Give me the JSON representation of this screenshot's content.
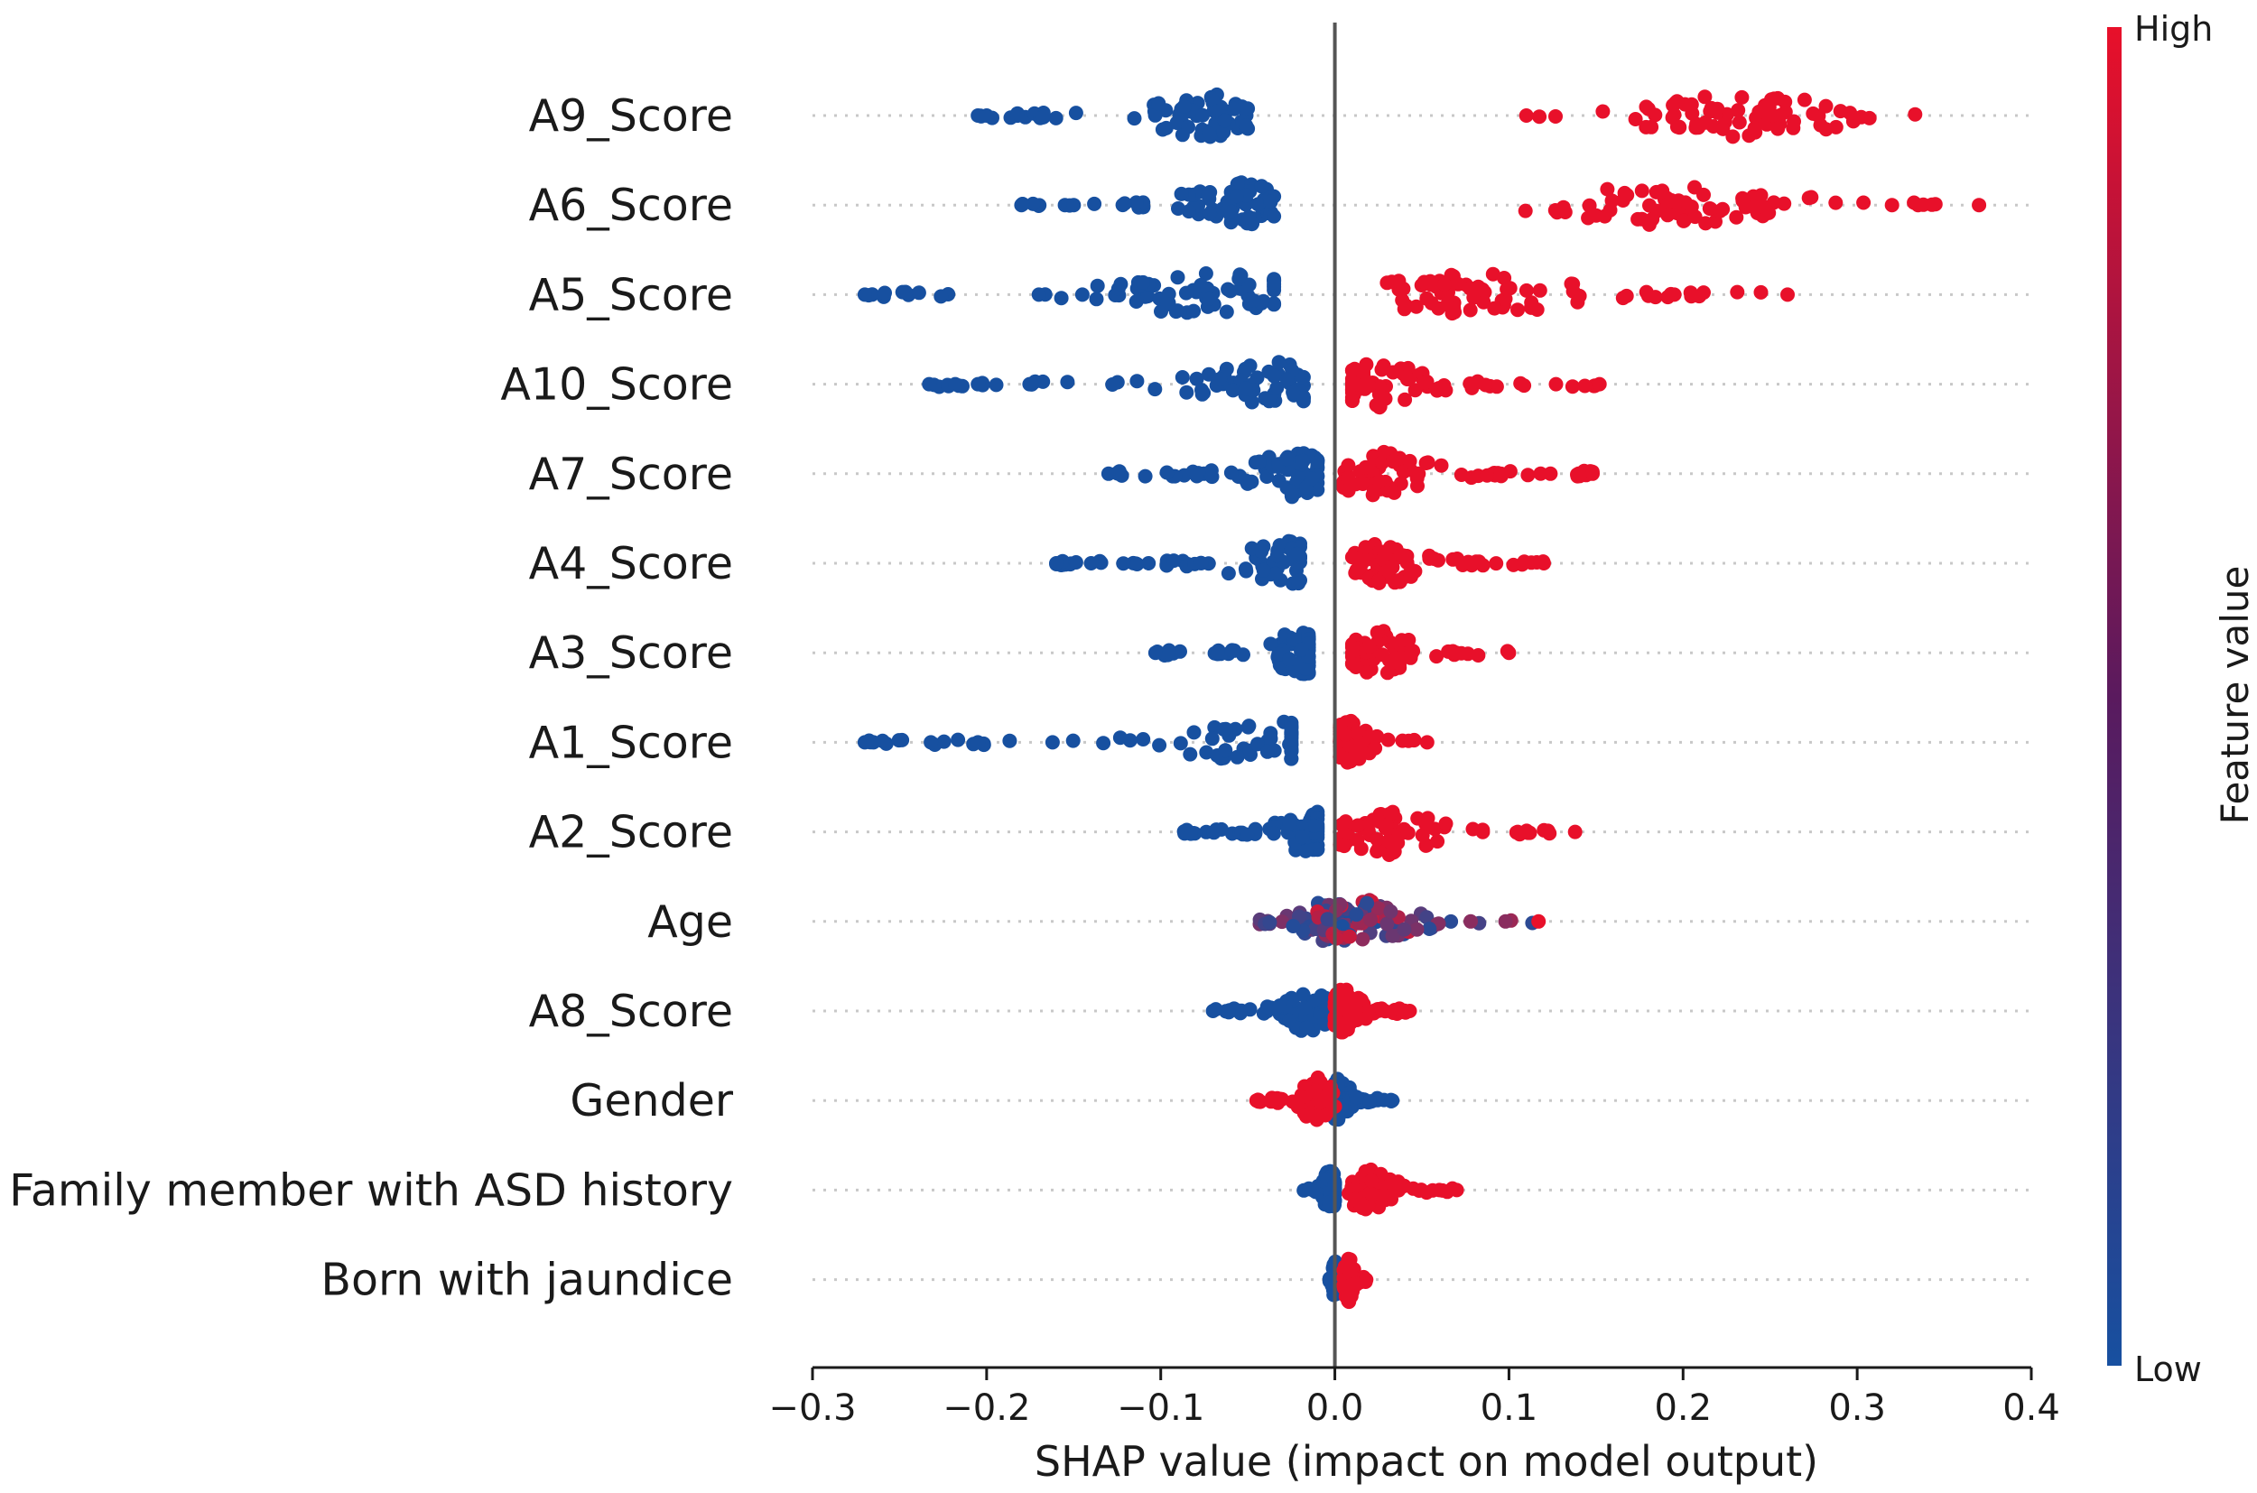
{
  "chart_data": {
    "type": "scatter",
    "subtype": "shap-beeswarm",
    "title": "",
    "xlabel": "SHAP value (impact on model output)",
    "ylabel": "",
    "xlim": [
      -0.3,
      0.4
    ],
    "xticks": [
      -0.3,
      -0.2,
      -0.1,
      0.0,
      0.1,
      0.2,
      0.3,
      0.4
    ],
    "xtick_labels": [
      "−0.3",
      "−0.2",
      "−0.1",
      "0.0",
      "0.1",
      "0.2",
      "0.3",
      "0.4"
    ],
    "grid": "horizontal dotted lines per feature",
    "colorbar": {
      "title": "Feature value",
      "high_label": "High",
      "low_label": "Low",
      "high_color": "#e8102a",
      "mid_color": "#5a1a5e",
      "low_color": "#1750a0",
      "placement": "right"
    },
    "features": [
      {
        "name": "A9_Score",
        "low_range": [
          -0.205,
          -0.05
        ],
        "high_range": [
          0.11,
          0.36
        ],
        "low_peak": -0.075,
        "high_peak": 0.235,
        "low_outliers": [
          -0.205,
          -0.2
        ],
        "high_outliers": [
          0.11
        ]
      },
      {
        "name": "A6_Score",
        "low_range": [
          -0.18,
          -0.035
        ],
        "high_range": [
          0.105,
          0.37
        ],
        "low_peak": -0.055,
        "high_peak": 0.195,
        "low_outliers": [
          -0.18,
          -0.155,
          -0.15
        ],
        "high_outliers": [
          0.32,
          0.335,
          0.37
        ]
      },
      {
        "name": "A5_Score",
        "low_range": [
          -0.27,
          -0.035
        ],
        "high_range": [
          0.03,
          0.26
        ],
        "low_peak": -0.07,
        "high_peak": 0.08,
        "low_outliers": [
          -0.27,
          -0.17,
          -0.145
        ],
        "high_outliers": [
          0.195,
          0.26
        ]
      },
      {
        "name": "A10_Score",
        "low_range": [
          -0.233,
          -0.018
        ],
        "high_range": [
          0.01,
          0.152
        ],
        "low_peak": -0.035,
        "high_peak": 0.025,
        "low_outliers": [
          -0.233,
          -0.218,
          -0.205
        ],
        "high_outliers": [
          0.127,
          0.152
        ]
      },
      {
        "name": "A7_Score",
        "low_range": [
          -0.13,
          -0.01
        ],
        "high_range": [
          0.005,
          0.148
        ],
        "low_peak": -0.025,
        "high_peak": 0.025,
        "low_outliers": [
          -0.13
        ],
        "high_outliers": [
          0.14,
          0.148
        ]
      },
      {
        "name": "A4_Score",
        "low_range": [
          -0.16,
          -0.02
        ],
        "high_range": [
          0.01,
          0.12
        ],
        "low_peak": -0.03,
        "high_peak": 0.03,
        "low_outliers": [
          -0.16,
          -0.14,
          -0.107
        ],
        "high_outliers": [
          0.12
        ]
      },
      {
        "name": "A3_Score",
        "low_range": [
          -0.103,
          -0.015
        ],
        "high_range": [
          0.01,
          0.1
        ],
        "low_peak": -0.02,
        "high_peak": 0.025,
        "low_outliers": [
          -0.103
        ],
        "high_outliers": [
          0.1
        ]
      },
      {
        "name": "A1_Score",
        "low_range": [
          -0.27,
          -0.025
        ],
        "high_range": [
          0.003,
          0.053
        ],
        "low_peak": -0.035,
        "high_peak": 0.008,
        "low_outliers": [
          -0.27,
          -0.265,
          -0.232,
          -0.205
        ],
        "high_outliers": [
          0.053
        ]
      },
      {
        "name": "A2_Score",
        "low_range": [
          -0.088,
          -0.01
        ],
        "high_range": [
          0.003,
          0.138
        ],
        "low_peak": -0.015,
        "high_peak": 0.03,
        "low_outliers": [],
        "high_outliers": [
          0.105,
          0.138
        ]
      },
      {
        "name": "Age",
        "low_range": [
          -0.045,
          0.02
        ],
        "high_range": [
          -0.01,
          0.117
        ],
        "low_peak": -0.005,
        "high_peak": 0.015,
        "low_outliers": [],
        "high_outliers": [
          0.078,
          0.098,
          0.117
        ]
      },
      {
        "name": "A8_Score",
        "low_range": [
          -0.07,
          -0.005
        ],
        "high_range": [
          0.0,
          0.043
        ],
        "low_peak": -0.015,
        "high_peak": 0.005,
        "low_outliers": [
          -0.07
        ],
        "high_outliers": [
          0.043
        ]
      },
      {
        "name": "Gender",
        "low_range": [
          0.0,
          0.033
        ],
        "high_range": [
          -0.045,
          0.0
        ],
        "low_peak": 0.002,
        "high_peak": -0.01,
        "low_outliers": [
          0.033
        ],
        "high_outliers": [
          -0.045
        ]
      },
      {
        "name": "Family member with ASD history",
        "low_range": [
          -0.018,
          0.0
        ],
        "high_range": [
          0.008,
          0.07
        ],
        "low_peak": -0.003,
        "high_peak": 0.02,
        "low_outliers": [],
        "high_outliers": [
          0.06,
          0.07
        ]
      },
      {
        "name": "Born with jaundice",
        "low_range": [
          -0.003,
          0.002
        ],
        "high_range": [
          0.005,
          0.018
        ],
        "low_peak": 0.0,
        "high_peak": 0.008,
        "low_outliers": [],
        "high_outliers": [
          0.018
        ]
      }
    ]
  }
}
